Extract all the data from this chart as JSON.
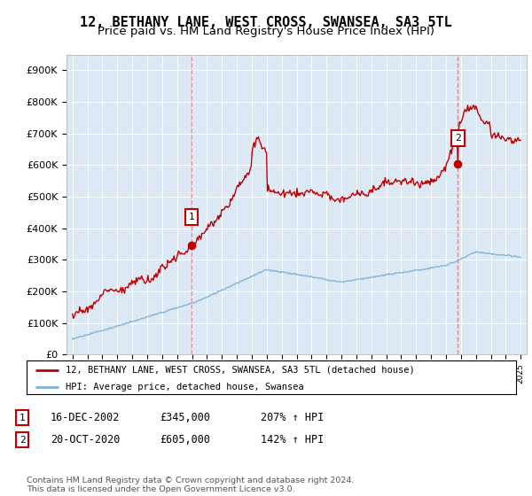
{
  "title": "12, BETHANY LANE, WEST CROSS, SWANSEA, SA3 5TL",
  "subtitle": "Price paid vs. HM Land Registry's House Price Index (HPI)",
  "ylim": [
    0,
    950000
  ],
  "yticks": [
    0,
    100000,
    200000,
    300000,
    400000,
    500000,
    600000,
    700000,
    800000,
    900000
  ],
  "ytick_labels": [
    "£0",
    "£100K",
    "£200K",
    "£300K",
    "£400K",
    "£500K",
    "£600K",
    "£700K",
    "£800K",
    "£900K"
  ],
  "sale1_date": 2002.96,
  "sale1_price": 345000,
  "sale2_date": 2020.79,
  "sale2_price": 605000,
  "hpi_color": "#7bafd4",
  "price_color": "#c00000",
  "dashed_color": "#d48080",
  "background_color": "#ffffff",
  "plot_bg_color": "#dce9f5",
  "grid_color": "#ffffff",
  "legend1_text": "12, BETHANY LANE, WEST CROSS, SWANSEA, SA3 5TL (detached house)",
  "legend2_text": "HPI: Average price, detached house, Swansea",
  "table_row1": [
    "1",
    "16-DEC-2002",
    "£345,000",
    "207% ↑ HPI"
  ],
  "table_row2": [
    "2",
    "20-OCT-2020",
    "£605,000",
    "142% ↑ HPI"
  ],
  "footer": "Contains HM Land Registry data © Crown copyright and database right 2024.\nThis data is licensed under the Open Government Licence v3.0.",
  "title_fontsize": 11,
  "subtitle_fontsize": 9.5,
  "tick_fontsize": 8
}
